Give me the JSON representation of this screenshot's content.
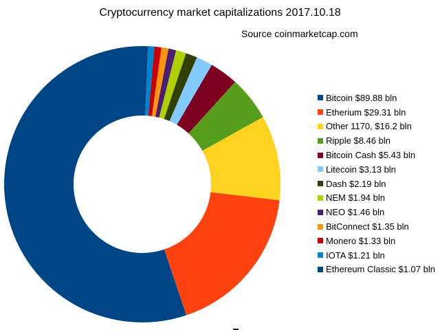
{
  "chart_data": {
    "type": "pie",
    "donut": true,
    "start_angle": "top",
    "direction": "clockwise, from last legend entry to first",
    "title": "Cryptocurrency market capitalizations 2017.10.18",
    "subtitle": "Source coinmarketcap.com",
    "legend_position": "right",
    "slices": [
      {
        "label": "Bitcoin $89.88 bln",
        "value": 89.88,
        "color": "#004586"
      },
      {
        "label": "Etherium $29.31 bln",
        "value": 29.31,
        "color": "#ff420e"
      },
      {
        "label": "Other 1170, $16.2 bln",
        "value": 16.2,
        "color": "#ffd320"
      },
      {
        "label": "Ripple $8.46 bln",
        "value": 8.46,
        "color": "#579d1c"
      },
      {
        "label": "Bitcoin Cash $5.43 bln",
        "value": 5.43,
        "color": "#7e0021"
      },
      {
        "label": "Litecoin $3.13 bln",
        "value": 3.13,
        "color": "#83caff"
      },
      {
        "label": "Dash $2.19 bln",
        "value": 2.19,
        "color": "#314004"
      },
      {
        "label": "NEM $1.94 bln",
        "value": 1.94,
        "color": "#aecf00"
      },
      {
        "label": "NEO $1.46 bln",
        "value": 1.46,
        "color": "#4b1f6f"
      },
      {
        "label": "BitConnect $1.35 bln",
        "value": 1.35,
        "color": "#ff950e"
      },
      {
        "label": "Monero $1.33 bln",
        "value": 1.33,
        "color": "#c5000b"
      },
      {
        "label": "IOTA $1.21 bln",
        "value": 1.21,
        "color": "#0084d1"
      },
      {
        "label": "Ethereum Classic $1.07 bln",
        "value": 1.07,
        "color": "#004586"
      }
    ]
  }
}
